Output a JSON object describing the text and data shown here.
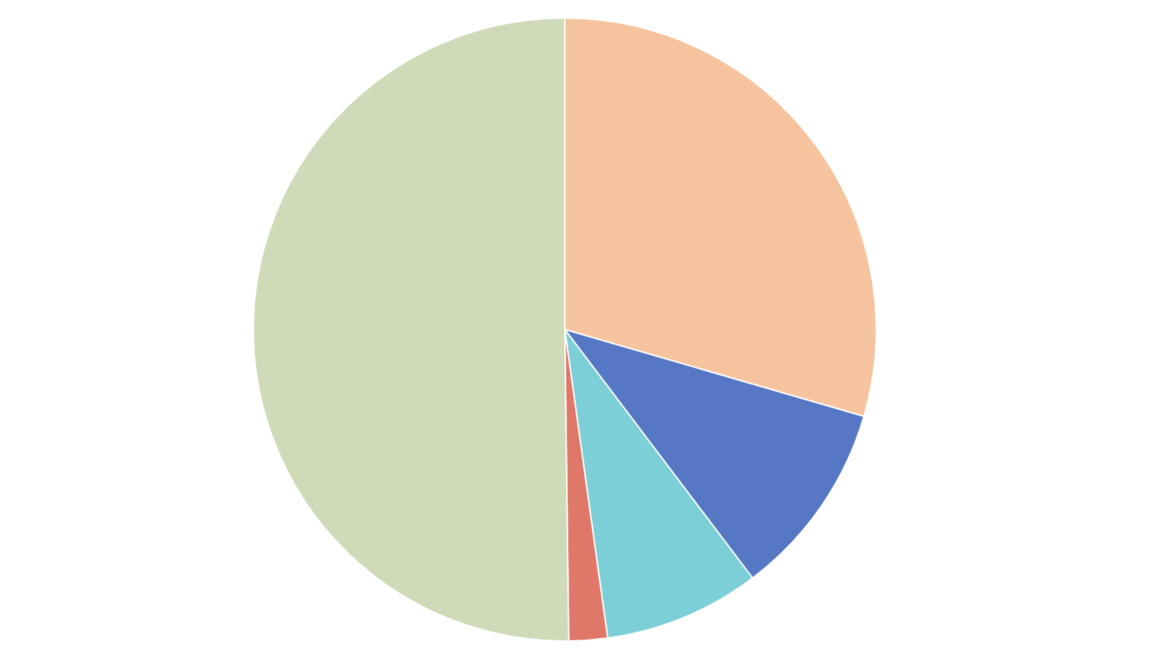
{
  "chart_data": {
    "type": "pie",
    "categories": [
      null,
      null,
      null,
      null,
      null
    ],
    "values": [
      29.5,
      10.2,
      8.1,
      2,
      50.2
    ],
    "colors": [
      "#f5c49f",
      "#5577c4",
      "#7ccfd6",
      "#e0786a",
      "#cfdab8"
    ],
    "legend": false
  }
}
